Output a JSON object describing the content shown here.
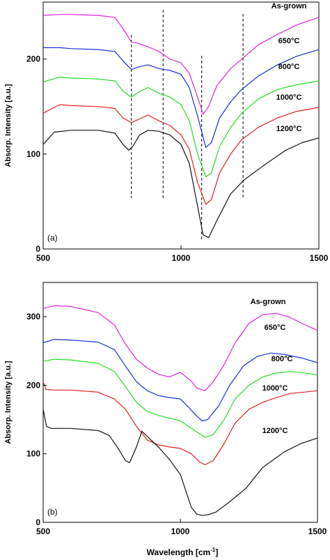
{
  "chart_data": [
    {
      "type": "line",
      "panel_label": "(a)",
      "xlabel": "",
      "ylabel": "Absorp. Intensity [a.u.]",
      "xlim": [
        500,
        1500
      ],
      "ylim": [
        0,
        260
      ],
      "xticks": [
        500,
        1000,
        1500
      ],
      "yticks": [
        0,
        100,
        200
      ],
      "grid": false,
      "reference_lines_x": [
        820,
        935,
        1075,
        1225
      ],
      "series": [
        {
          "name": "As-grown",
          "color": "#e020e0",
          "x": [
            500,
            560,
            600,
            700,
            760,
            790,
            820,
            850,
            880,
            920,
            960,
            1000,
            1030,
            1060,
            1080,
            1100,
            1130,
            1180,
            1220,
            1280,
            1350,
            1420,
            1500
          ],
          "y": [
            246,
            247,
            247,
            246,
            244,
            232,
            218,
            216,
            213,
            208,
            200,
            196,
            185,
            160,
            142,
            150,
            172,
            190,
            200,
            215,
            226,
            236,
            244
          ]
        },
        {
          "name": "650°C",
          "color": "#1a2fd8",
          "x": [
            500,
            560,
            600,
            700,
            760,
            790,
            820,
            850,
            880,
            920,
            960,
            1000,
            1030,
            1060,
            1090,
            1110,
            1140,
            1180,
            1220,
            1280,
            1350,
            1420,
            1500
          ],
          "y": [
            212,
            212,
            211,
            210,
            208,
            198,
            189,
            192,
            194,
            190,
            188,
            184,
            170,
            140,
            107,
            112,
            138,
            155,
            168,
            182,
            194,
            203,
            210
          ]
        },
        {
          "name": "800°C",
          "color": "#22dd22",
          "x": [
            500,
            560,
            600,
            700,
            760,
            790,
            820,
            850,
            880,
            920,
            960,
            1000,
            1030,
            1060,
            1090,
            1110,
            1140,
            1180,
            1220,
            1280,
            1350,
            1420,
            1500
          ],
          "y": [
            176,
            181,
            180,
            179,
            177,
            166,
            160,
            166,
            170,
            164,
            160,
            152,
            135,
            100,
            76,
            80,
            108,
            128,
            143,
            158,
            168,
            173,
            177
          ]
        },
        {
          "name": "1000°C",
          "color": "#e02020",
          "x": [
            500,
            560,
            600,
            700,
            760,
            790,
            820,
            850,
            880,
            920,
            960,
            1000,
            1030,
            1060,
            1090,
            1110,
            1140,
            1180,
            1220,
            1280,
            1350,
            1420,
            1500
          ],
          "y": [
            143,
            152,
            151,
            150,
            148,
            138,
            133,
            137,
            141,
            135,
            130,
            120,
            105,
            70,
            47,
            52,
            80,
            100,
            115,
            128,
            138,
            145,
            149
          ]
        },
        {
          "name": "1200°C",
          "color": "#111111",
          "x": [
            500,
            540,
            600,
            700,
            760,
            790,
            810,
            825,
            850,
            880,
            920,
            960,
            1000,
            1030,
            1060,
            1080,
            1100,
            1130,
            1180,
            1230,
            1300,
            1380,
            1440,
            1500
          ],
          "y": [
            110,
            123,
            125,
            125,
            122,
            110,
            104,
            108,
            120,
            125,
            124,
            120,
            110,
            90,
            45,
            15,
            12,
            30,
            58,
            73,
            88,
            104,
            112,
            117
          ]
        }
      ]
    },
    {
      "type": "line",
      "panel_label": "(b)",
      "xlabel": "Wavelength [cm",
      "xlabel_sup": "-1",
      "xlabel_end": "]",
      "ylabel": "Absorp. Intensity [a.u.]",
      "xlim": [
        500,
        1500
      ],
      "ylim": [
        0,
        350
      ],
      "xticks": [
        500,
        1000,
        1500
      ],
      "yticks": [
        0,
        100,
        200,
        300
      ],
      "grid": false,
      "reference_lines_x": [],
      "series": [
        {
          "name": "As-grown",
          "color": "#e020e0",
          "x": [
            500,
            540,
            600,
            700,
            760,
            800,
            840,
            880,
            920,
            960,
            1000,
            1040,
            1060,
            1090,
            1120,
            1160,
            1200,
            1250,
            1300,
            1350,
            1400,
            1450,
            1500
          ],
          "y": [
            312,
            316,
            315,
            306,
            288,
            260,
            238,
            225,
            216,
            212,
            219,
            206,
            196,
            192,
            205,
            230,
            262,
            290,
            303,
            305,
            299,
            289,
            280
          ]
        },
        {
          "name": "650°C",
          "color": "#1a2fd8",
          "x": [
            500,
            540,
            600,
            700,
            760,
            800,
            840,
            880,
            920,
            960,
            1000,
            1030,
            1060,
            1080,
            1100,
            1140,
            1180,
            1230,
            1280,
            1330,
            1380,
            1440,
            1500
          ],
          "y": [
            262,
            267,
            266,
            263,
            252,
            228,
            205,
            192,
            185,
            182,
            180,
            168,
            155,
            148,
            150,
            170,
            200,
            228,
            242,
            247,
            245,
            240,
            233
          ]
        },
        {
          "name": "800°C",
          "color": "#22dd22",
          "x": [
            500,
            540,
            600,
            700,
            760,
            800,
            840,
            880,
            920,
            960,
            1000,
            1030,
            1060,
            1090,
            1120,
            1160,
            1200,
            1250,
            1300,
            1350,
            1400,
            1450,
            1500
          ],
          "y": [
            235,
            238,
            237,
            232,
            220,
            198,
            175,
            162,
            156,
            152,
            148,
            140,
            132,
            124,
            128,
            150,
            180,
            200,
            212,
            218,
            220,
            218,
            215
          ]
        },
        {
          "name": "1000°C",
          "color": "#e02020",
          "x": [
            500,
            510,
            540,
            600,
            700,
            760,
            800,
            840,
            880,
            920,
            960,
            1000,
            1040,
            1070,
            1090,
            1120,
            1160,
            1200,
            1250,
            1300,
            1350,
            1400,
            1450,
            1500
          ],
          "y": [
            205,
            194,
            193,
            193,
            190,
            180,
            165,
            140,
            120,
            113,
            110,
            108,
            100,
            88,
            84,
            90,
            115,
            145,
            165,
            175,
            182,
            188,
            190,
            192
          ]
        },
        {
          "name": "1200°C",
          "color": "#111111",
          "x": [
            500,
            512,
            530,
            600,
            700,
            740,
            770,
            800,
            815,
            840,
            860,
            880,
            920,
            960,
            1000,
            1040,
            1060,
            1080,
            1100,
            1130,
            1180,
            1240,
            1300,
            1380,
            1440,
            1500
          ],
          "y": [
            165,
            140,
            137,
            137,
            134,
            127,
            110,
            90,
            87,
            110,
            133,
            125,
            110,
            92,
            70,
            22,
            12,
            10,
            11,
            15,
            30,
            50,
            80,
            103,
            115,
            123
          ]
        }
      ]
    }
  ]
}
